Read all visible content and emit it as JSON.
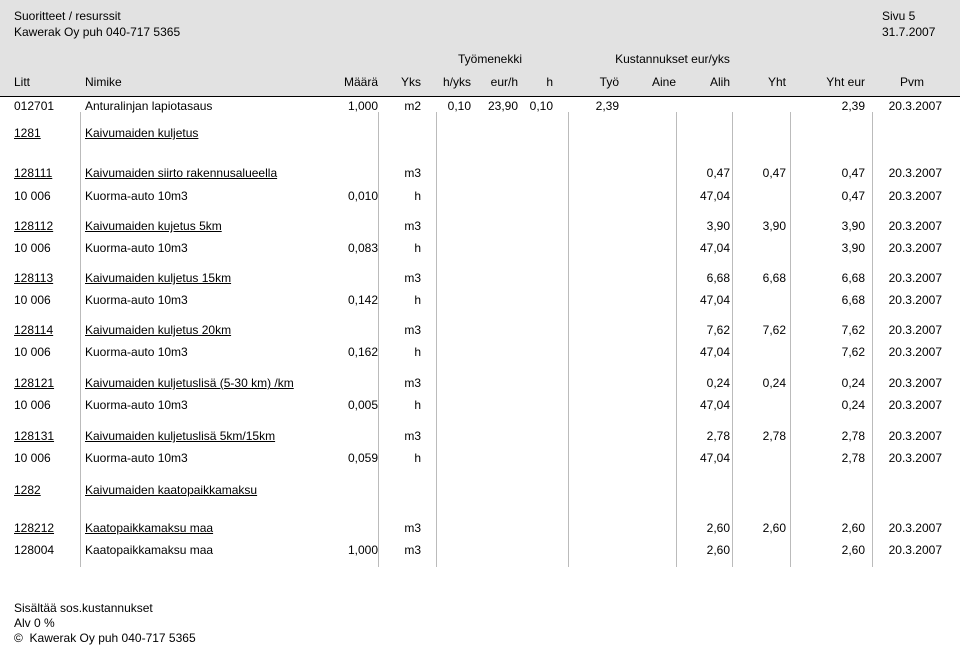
{
  "header": {
    "title": "Suoritteet / resurssit",
    "company": "Kawerak Oy puh 040-717 5365",
    "page": "Sivu 5",
    "date": "31.7.2007",
    "group_labor": "Työmenekki",
    "group_costs": "Kustannukset eur/yks"
  },
  "columns": {
    "litt": "Litt",
    "nimike": "Nimike",
    "maara": "Määrä",
    "yks": "Yks",
    "h_per_yks": "h/yks",
    "eur_per_h": "eur/h",
    "h": "h",
    "tyo": "Työ",
    "aine": "Aine",
    "alih": "Alih",
    "yht": "Yht",
    "yht_eur": "Yht eur",
    "pvm": "Pvm"
  },
  "rows": [
    {
      "litt": "012701",
      "nimike": "Anturalinjan lapiotasaus",
      "maara": "1,000",
      "yks": "m2",
      "h_per_yks": "0,10",
      "eur_per_h": "23,90",
      "h": "0,10",
      "tyo": "2,39",
      "aine": "",
      "alih": "",
      "yht": "",
      "yht_eur": "2,39",
      "pvm": "20.3.2007",
      "underline": false
    },
    {
      "litt": "1281",
      "nimike": "Kaivumaiden kuljetus",
      "maara": "",
      "yks": "",
      "h_per_yks": "",
      "eur_per_h": "",
      "h": "",
      "tyo": "",
      "aine": "",
      "alih": "",
      "yht": "",
      "yht_eur": "",
      "pvm": "",
      "underline": true
    },
    {
      "litt": "128111",
      "nimike": "Kaivumaiden siirto rakennusalueella",
      "maara": "",
      "yks": "m3",
      "h_per_yks": "",
      "eur_per_h": "",
      "h": "",
      "tyo": "",
      "aine": "",
      "alih": "0,47",
      "yht": "0,47",
      "yht_eur": "0,47",
      "pvm": "20.3.2007",
      "underline": true
    },
    {
      "litt": "10 006",
      "nimike": "Kuorma-auto 10m3",
      "maara": "0,010",
      "yks": "h",
      "h_per_yks": "",
      "eur_per_h": "",
      "h": "",
      "tyo": "",
      "aine": "",
      "alih": "47,04",
      "yht": "",
      "yht_eur": "0,47",
      "pvm": "20.3.2007",
      "underline": false
    },
    {
      "litt": "128112",
      "nimike": "Kaivumaiden kujetus 5km",
      "maara": "",
      "yks": "m3",
      "h_per_yks": "",
      "eur_per_h": "",
      "h": "",
      "tyo": "",
      "aine": "",
      "alih": "3,90",
      "yht": "3,90",
      "yht_eur": "3,90",
      "pvm": "20.3.2007",
      "underline": true
    },
    {
      "litt": "10 006",
      "nimike": "Kuorma-auto 10m3",
      "maara": "0,083",
      "yks": "h",
      "h_per_yks": "",
      "eur_per_h": "",
      "h": "",
      "tyo": "",
      "aine": "",
      "alih": "47,04",
      "yht": "",
      "yht_eur": "3,90",
      "pvm": "20.3.2007",
      "underline": false
    },
    {
      "litt": "128113",
      "nimike": "Kaivumaiden kuljetus 15km",
      "maara": "",
      "yks": "m3",
      "h_per_yks": "",
      "eur_per_h": "",
      "h": "",
      "tyo": "",
      "aine": "",
      "alih": "6,68",
      "yht": "6,68",
      "yht_eur": "6,68",
      "pvm": "20.3.2007",
      "underline": true
    },
    {
      "litt": "10 006",
      "nimike": "Kuorma-auto 10m3",
      "maara": "0,142",
      "yks": "h",
      "h_per_yks": "",
      "eur_per_h": "",
      "h": "",
      "tyo": "",
      "aine": "",
      "alih": "47,04",
      "yht": "",
      "yht_eur": "6,68",
      "pvm": "20.3.2007",
      "underline": false
    },
    {
      "litt": "128114",
      "nimike": "Kaivumaiden kuljetus 20km",
      "maara": "",
      "yks": "m3",
      "h_per_yks": "",
      "eur_per_h": "",
      "h": "",
      "tyo": "",
      "aine": "",
      "alih": "7,62",
      "yht": "7,62",
      "yht_eur": "7,62",
      "pvm": "20.3.2007",
      "underline": true
    },
    {
      "litt": "10 006",
      "nimike": "Kuorma-auto 10m3",
      "maara": "0,162",
      "yks": "h",
      "h_per_yks": "",
      "eur_per_h": "",
      "h": "",
      "tyo": "",
      "aine": "",
      "alih": "47,04",
      "yht": "",
      "yht_eur": "7,62",
      "pvm": "20.3.2007",
      "underline": false
    },
    {
      "litt": "128121",
      "nimike": "Kaivumaiden kuljetuslisä (5-30 km) /km",
      "maara": "",
      "yks": "m3",
      "h_per_yks": "",
      "eur_per_h": "",
      "h": "",
      "tyo": "",
      "aine": "",
      "alih": "0,24",
      "yht": "0,24",
      "yht_eur": "0,24",
      "pvm": "20.3.2007",
      "underline": true
    },
    {
      "litt": "10 006",
      "nimike": "Kuorma-auto 10m3",
      "maara": "0,005",
      "yks": "h",
      "h_per_yks": "",
      "eur_per_h": "",
      "h": "",
      "tyo": "",
      "aine": "",
      "alih": "47,04",
      "yht": "",
      "yht_eur": "0,24",
      "pvm": "20.3.2007",
      "underline": false
    },
    {
      "litt": "128131",
      "nimike": "Kaivumaiden kuljetuslisä 5km/15km",
      "maara": "",
      "yks": "m3",
      "h_per_yks": "",
      "eur_per_h": "",
      "h": "",
      "tyo": "",
      "aine": "",
      "alih": "2,78",
      "yht": "2,78",
      "yht_eur": "2,78",
      "pvm": "20.3.2007",
      "underline": true
    },
    {
      "litt": "10 006",
      "nimike": "Kuorma-auto 10m3",
      "maara": "0,059",
      "yks": "h",
      "h_per_yks": "",
      "eur_per_h": "",
      "h": "",
      "tyo": "",
      "aine": "",
      "alih": "47,04",
      "yht": "",
      "yht_eur": "2,78",
      "pvm": "20.3.2007",
      "underline": false
    },
    {
      "litt": "1282",
      "nimike": "Kaivumaiden kaatopaikkamaksu",
      "maara": "",
      "yks": "",
      "h_per_yks": "",
      "eur_per_h": "",
      "h": "",
      "tyo": "",
      "aine": "",
      "alih": "",
      "yht": "",
      "yht_eur": "",
      "pvm": "",
      "underline": true
    },
    {
      "litt": "128212",
      "nimike": "Kaatopaikkamaksu maa",
      "maara": "",
      "yks": "m3",
      "h_per_yks": "",
      "eur_per_h": "",
      "h": "",
      "tyo": "",
      "aine": "",
      "alih": "2,60",
      "yht": "2,60",
      "yht_eur": "2,60",
      "pvm": "20.3.2007",
      "underline": true
    },
    {
      "litt": "128004",
      "nimike": "Kaatopaikkamaksu maa",
      "maara": "1,000",
      "yks": "m3",
      "h_per_yks": "",
      "eur_per_h": "",
      "h": "",
      "tyo": "",
      "aine": "",
      "alih": "2,60",
      "yht": "",
      "yht_eur": "2,60",
      "pvm": "20.3.2007",
      "underline": false
    }
  ],
  "footer": {
    "line1": "Sisältää sos.kustannukset",
    "line2": "Alv 0 %",
    "copyright_symbol": "©",
    "line3": "Kawerak Oy puh 040-717 5365"
  }
}
